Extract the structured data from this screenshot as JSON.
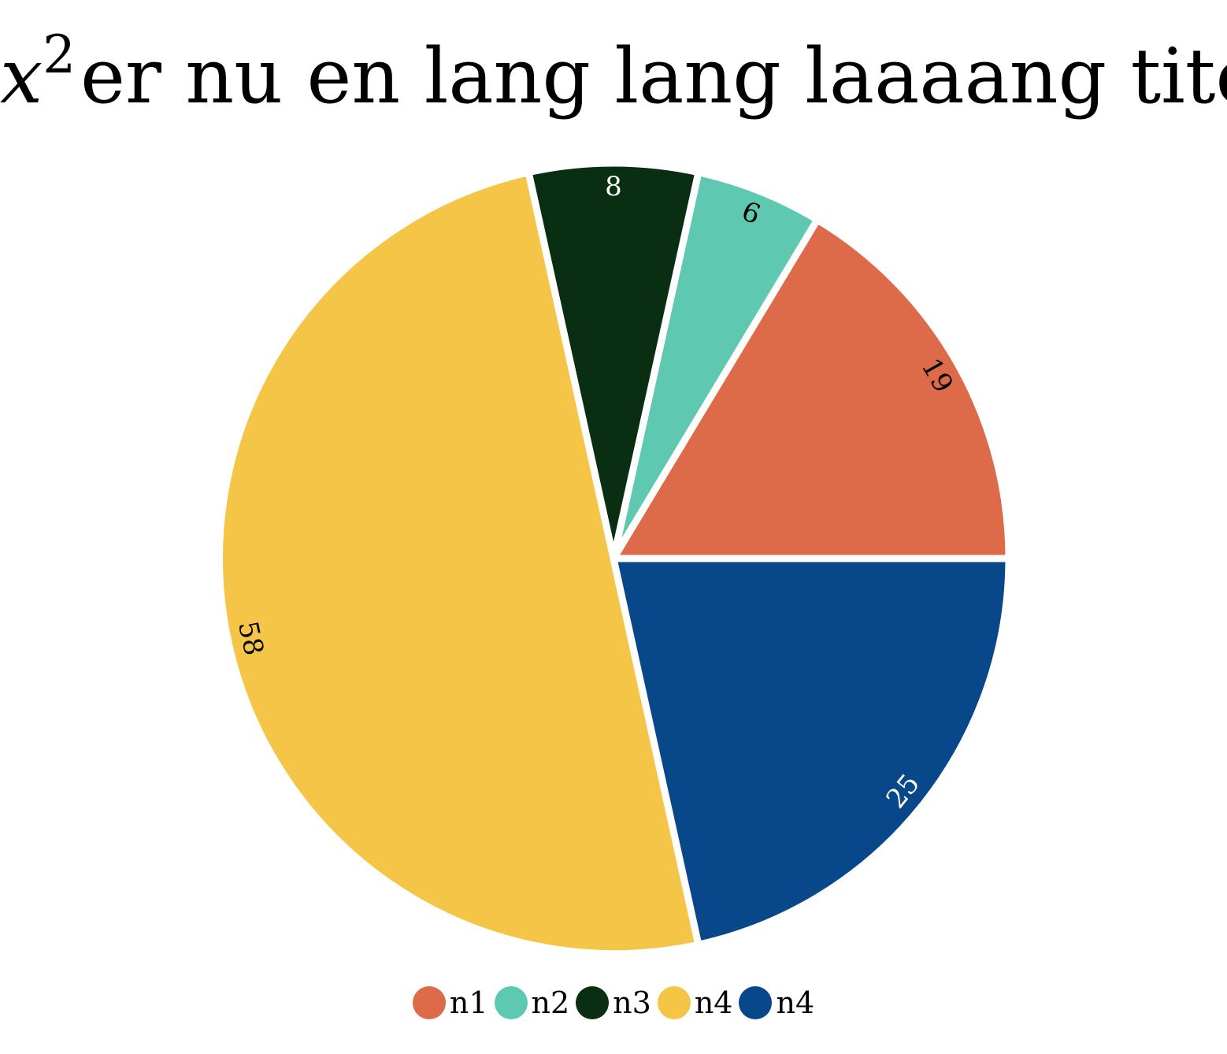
{
  "chart_data": {
    "type": "pie",
    "title": {
      "variable": "x",
      "superscript": "2",
      "text": "er nu en lang lang laaaang titel"
    },
    "slices": [
      {
        "label": "n1",
        "value": 19,
        "color": "#DD6B4A",
        "label_color": "#000000"
      },
      {
        "label": "n2",
        "value": 6,
        "color": "#5EC9B0",
        "label_color": "#000000"
      },
      {
        "label": "n3",
        "value": 8,
        "color": "#0A2E11",
        "label_color": "#FFFFFF"
      },
      {
        "label": "n4",
        "value": 58,
        "color": "#F5C547",
        "label_color": "#000000"
      },
      {
        "label": "n4",
        "value": 25,
        "color": "#07478A",
        "label_color": "#FFFFFF"
      }
    ],
    "start_direction": "east (3 o'clock)",
    "direction": "counter-clockwise",
    "legend_position": "bottom-center",
    "value_labels": "rotated, near outer edge"
  }
}
